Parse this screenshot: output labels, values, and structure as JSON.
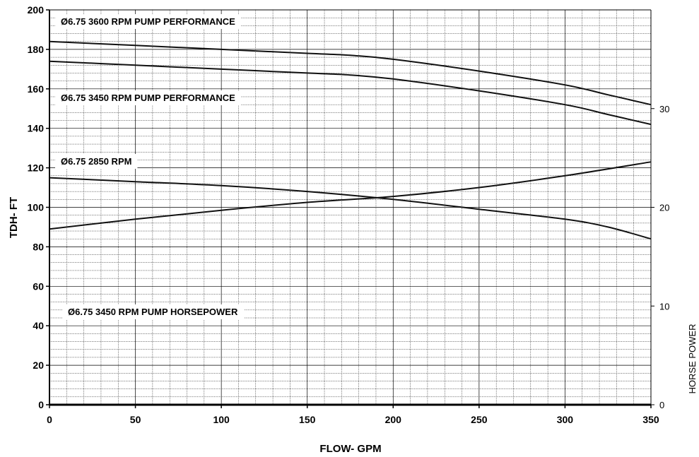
{
  "chart_data": {
    "type": "line",
    "xlabel": "FLOW- GPM",
    "ylabel": "TDH- FT",
    "y2label": "HORSE POWER",
    "xlim": [
      0,
      350
    ],
    "ylim": [
      0,
      200
    ],
    "y2lim": [
      0,
      40
    ],
    "x_ticks": [
      0,
      50,
      100,
      150,
      200,
      250,
      300,
      350
    ],
    "y_ticks": [
      0,
      20,
      40,
      60,
      80,
      100,
      120,
      140,
      160,
      180,
      200
    ],
    "y2_ticks": [
      0,
      10,
      20,
      30
    ],
    "grid": true,
    "series": [
      {
        "name": "Ø6.75 3600 RPM PUMP PERFORMANCE",
        "axis": "left",
        "x": [
          0,
          50,
          100,
          150,
          175,
          200,
          250,
          300,
          325,
          350
        ],
        "y": [
          184,
          182,
          180,
          178,
          177,
          175,
          169,
          162,
          157,
          152
        ]
      },
      {
        "name": "Ø6.75 3450 RPM PUMP PERFORMANCE",
        "axis": "left",
        "x": [
          0,
          50,
          100,
          150,
          175,
          200,
          250,
          300,
          325,
          350
        ],
        "y": [
          174,
          172,
          170,
          168,
          167,
          165,
          159,
          152,
          147,
          142
        ]
      },
      {
        "name": "Ø6.75 2850 RPM",
        "axis": "left",
        "x": [
          0,
          50,
          100,
          150,
          200,
          250,
          300,
          325,
          350
        ],
        "y": [
          115,
          113,
          111,
          108,
          104,
          99,
          94,
          90,
          84
        ]
      },
      {
        "name": "Ø6.75 3450 RPM PUMP HORSEPOWER",
        "axis": "right",
        "x": [
          0,
          50,
          100,
          150,
          200,
          250,
          300,
          350
        ],
        "y": [
          17.8,
          18.8,
          19.7,
          20.5,
          21.1,
          22.0,
          23.2,
          24.6
        ]
      }
    ]
  }
}
